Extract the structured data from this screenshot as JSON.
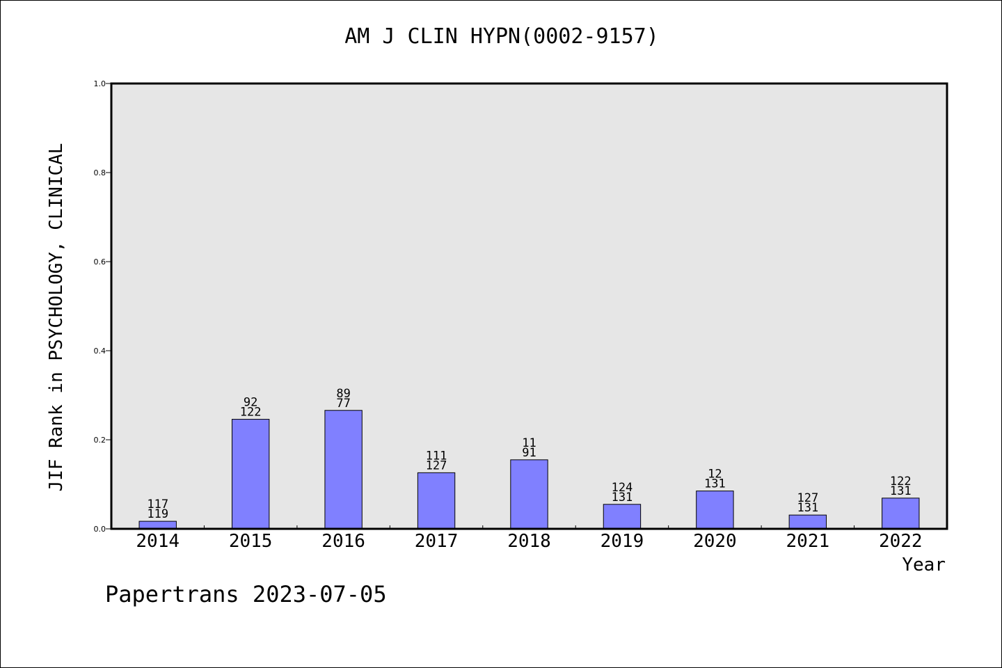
{
  "chart_data": {
    "type": "bar",
    "title": "AM J CLIN HYPN(0002-9157)",
    "xlabel": "Year",
    "ylabel": "JIF Rank in PSYCHOLOGY, CLINICAL",
    "categories": [
      "2014",
      "2015",
      "2016",
      "2017",
      "2018",
      "2019",
      "2020",
      "2021",
      "2022"
    ],
    "values": [
      0.017,
      0.246,
      0.266,
      0.126,
      0.155,
      0.055,
      0.085,
      0.031,
      0.069
    ],
    "labels_top": [
      "117",
      "92",
      "89",
      "111",
      "11",
      "124",
      "12",
      "127",
      "122"
    ],
    "labels_bottom": [
      "119",
      "122",
      "77",
      "127",
      "91",
      "131",
      "131",
      "131",
      "131"
    ],
    "ylim": [
      0,
      1.0
    ],
    "yticks": [
      "0.0",
      "0.2",
      "0.4",
      "0.6",
      "0.8",
      "1.0"
    ],
    "grid": false,
    "colors": {
      "bar": "#8080ff",
      "plot_background": "#e6e6e6"
    }
  },
  "footer": "Papertrans 2023-07-05"
}
